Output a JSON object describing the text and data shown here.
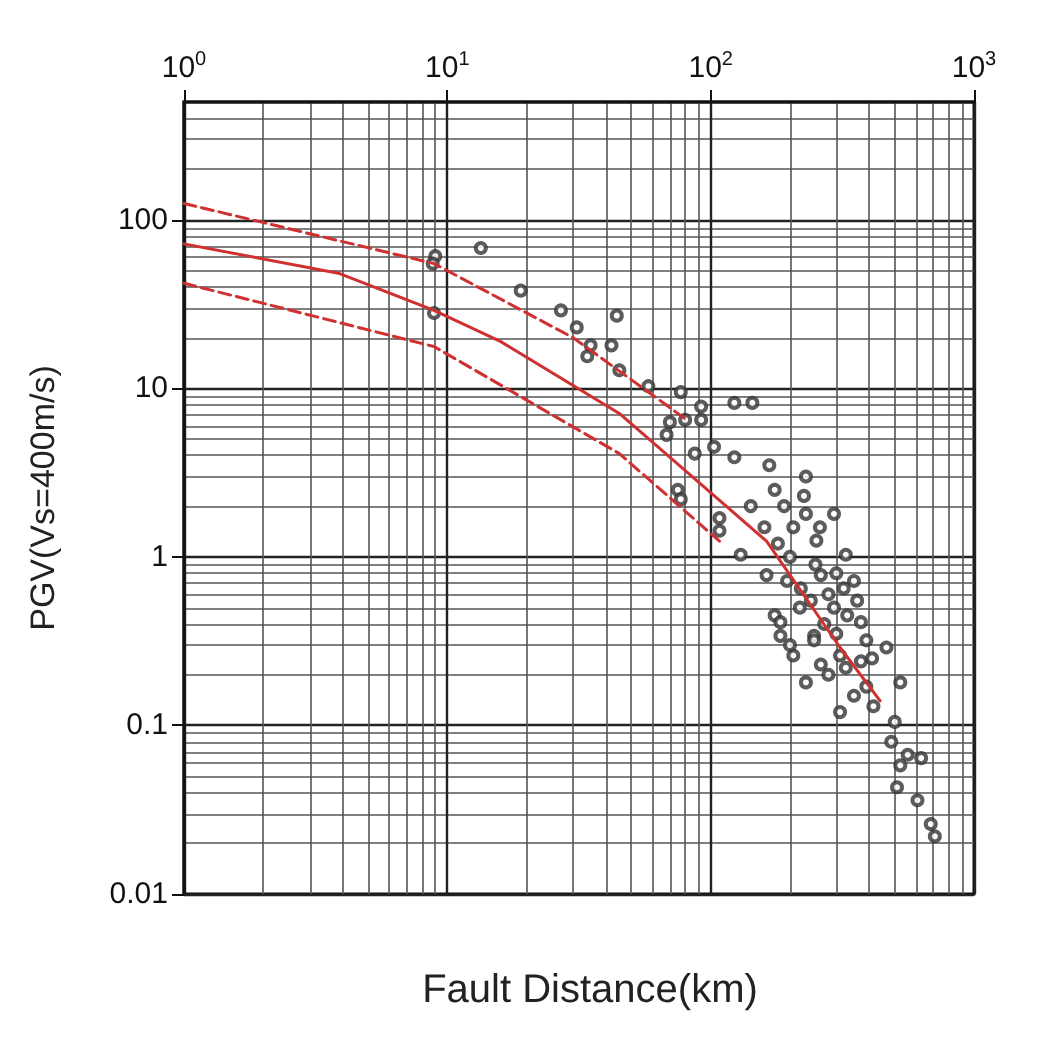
{
  "chart_data": {
    "type": "scatter",
    "xlabel": "Fault Distance(km)",
    "ylabel": "PGV(Vs=400m/s)",
    "log": "xy",
    "grid": true,
    "tick_labels": "xy",
    "xlim": [
      1,
      1000
    ],
    "xticks": [
      {
        "value": 1,
        "label": "10$^{0}$"
      },
      {
        "value": 10,
        "label": "10$^{1}$"
      },
      {
        "value": 100,
        "label": "10$^{2}$"
      },
      {
        "value": 1000,
        "label": "10$^{3}$"
      }
    ],
    "ylim": [
      0.01,
      500
    ],
    "yticks": [
      {
        "value": 0.01,
        "label": "0.01"
      },
      {
        "value": 0.1,
        "label": "0.1"
      },
      1,
      10,
      100
    ],
    "series": [
      {
        "marker": "circle",
        "color": "#333333",
        "x": [
          9,
          13.4,
          19,
          8.8,
          8.9,
          27,
          31,
          35,
          42,
          34,
          44,
          45,
          58,
          77,
          92,
          123,
          144,
          70,
          80,
          92,
          68,
          87,
          103,
          123,
          167,
          230,
          75,
          77,
          108,
          108,
          142,
          175,
          226,
          294,
          206,
          252,
          326,
          130,
          163,
          195,
          262,
          350,
          175,
          218,
          294,
          372,
          184,
          247,
          390,
          310,
          184,
          247,
          206,
          326,
          465,
          230,
          390,
          525,
          310,
          415,
          500,
          485,
          560,
          630,
          525,
          510,
          610,
          685,
          710,
          372,
          262,
          200,
          250,
          280,
          220,
          300,
          180,
          240,
          330,
          270,
          360,
          200,
          300,
          410,
          280,
          350,
          230,
          160,
          190,
          260,
          320
        ],
        "values": [
          61,
          68,
          38,
          55,
          28,
          29,
          23,
          18,
          18,
          15.5,
          27,
          12.8,
          10.3,
          9.5,
          7.8,
          8.2,
          8.2,
          6.3,
          6.5,
          6.5,
          5.3,
          4.1,
          4.5,
          3.9,
          3.5,
          3.0,
          2.5,
          2.2,
          1.7,
          1.43,
          2.0,
          2.5,
          2.3,
          1.8,
          1.5,
          1.25,
          1.03,
          1.03,
          0.78,
          0.72,
          0.78,
          0.72,
          0.45,
          0.5,
          0.5,
          0.41,
          0.34,
          0.34,
          0.32,
          0.26,
          0.41,
          0.32,
          0.26,
          0.22,
          0.29,
          0.18,
          0.17,
          0.18,
          0.12,
          0.13,
          0.105,
          0.08,
          0.067,
          0.064,
          0.058,
          0.043,
          0.036,
          0.026,
          0.022,
          0.24,
          0.23,
          1.0,
          0.9,
          0.6,
          0.65,
          0.8,
          1.2,
          0.55,
          0.45,
          0.4,
          0.55,
          0.3,
          0.35,
          0.25,
          0.2,
          0.15,
          1.8,
          1.5,
          2.0,
          1.5,
          0.65
        ]
      },
      {
        "type": "line",
        "marker": "none",
        "line_style": "solid",
        "color": "#d03030",
        "x": [
          1,
          3.9,
          8.9,
          15.9,
          45,
          163,
          310,
          440
        ],
        "values": [
          72,
          48,
          29,
          19,
          7.1,
          1.24,
          0.29,
          0.14
        ]
      },
      {
        "type": "line",
        "marker": "none",
        "line_style": "dashed",
        "color": "#d03030",
        "x": [
          1,
          8.9,
          30,
          57,
          80
        ],
        "values": [
          125,
          55,
          20,
          9.7,
          6.6
        ]
      },
      {
        "type": "line",
        "marker": "none",
        "line_style": "dashed",
        "color": "#d03030",
        "x": [
          1,
          8.9,
          45,
          108
        ],
        "values": [
          42,
          17.7,
          4.1,
          1.24
        ]
      }
    ]
  }
}
